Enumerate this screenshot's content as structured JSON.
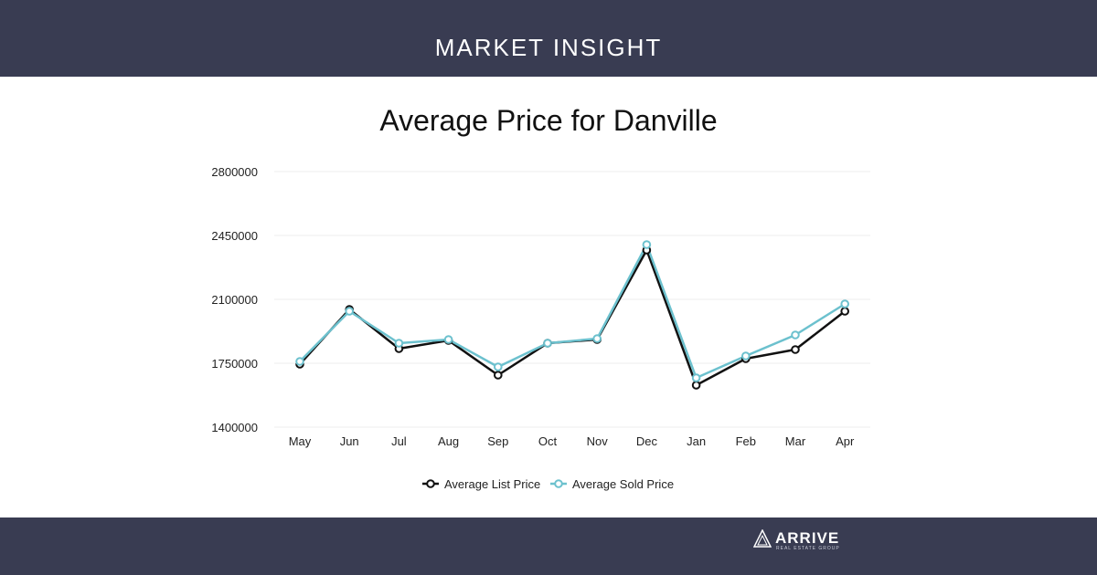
{
  "header": {
    "title": "MARKET INSIGHT"
  },
  "brand": {
    "name": "ARRIVE",
    "tagline": "REAL ESTATE GROUP"
  },
  "colors": {
    "band": "#393c52",
    "list_series": "#111111",
    "sold_series": "#6cc1ce",
    "grid": "#ececec"
  },
  "chart_data": {
    "type": "line",
    "title": "Average Price for Danville",
    "xlabel": "",
    "ylabel": "",
    "categories": [
      "May",
      "Jun",
      "Jul",
      "Aug",
      "Sep",
      "Oct",
      "Nov",
      "Dec",
      "Jan",
      "Feb",
      "Mar",
      "Apr"
    ],
    "ylim": [
      1400000,
      2800000
    ],
    "yticks": [
      "2800000",
      "2450000",
      "2100000",
      "1750000",
      "1400000"
    ],
    "grid": true,
    "legend_position": "bottom",
    "series": [
      {
        "name": "Average List Price",
        "color": "#111111",
        "values": [
          1745000,
          2045000,
          1830000,
          1875000,
          1685000,
          1860000,
          1880000,
          2370000,
          1630000,
          1775000,
          1825000,
          2035000
        ]
      },
      {
        "name": "Average Sold Price",
        "color": "#6cc1ce",
        "values": [
          1760000,
          2035000,
          1860000,
          1880000,
          1730000,
          1860000,
          1885000,
          2400000,
          1670000,
          1790000,
          1905000,
          2075000
        ]
      }
    ]
  }
}
